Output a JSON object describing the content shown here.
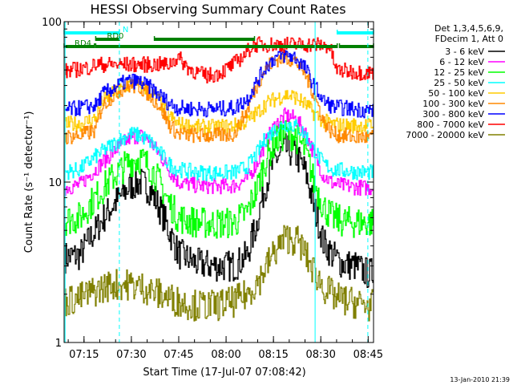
{
  "chart_data": {
    "type": "line",
    "title": "HESSI Observing Summary Count Rates",
    "xlabel": "Start Time (17-Jul-07 07:08:42)",
    "ylabel": "Count Rate (s⁻¹ detector⁻¹)",
    "x_axis_units": "minutes after 07:08:42",
    "xlim": [
      0,
      98
    ],
    "ylim": [
      1,
      100
    ],
    "y_scale": "log",
    "x_ticks": [
      {
        "label": "07:15",
        "x": 6.3
      },
      {
        "label": "07:30",
        "x": 21.3
      },
      {
        "label": "07:45",
        "x": 36.3
      },
      {
        "label": "08:00",
        "x": 51.3
      },
      {
        "label": "08:15",
        "x": 66.3
      },
      {
        "label": "08:30",
        "x": 81.3
      },
      {
        "label": "08:45",
        "x": 96.3
      }
    ],
    "y_ticks": [
      {
        "label": "1",
        "y": 1
      },
      {
        "label": "10",
        "y": 10
      },
      {
        "label": "100",
        "y": 100
      }
    ],
    "grid": false,
    "legend_header": [
      "Det 1,3,4,5,6,9,",
      "FDecim 1, Att 0"
    ],
    "legend_position": "right",
    "timestamp": "13-Jan-2010 21:39",
    "series": [
      {
        "name": "3 - 6 keV",
        "color": "#000000",
        "x": [
          0,
          5,
          10,
          15,
          18,
          21,
          24,
          27,
          30,
          33,
          36,
          42,
          48,
          54,
          58,
          61,
          64,
          67,
          70,
          73,
          76,
          79,
          82,
          85,
          88,
          92,
          96
        ],
        "y": [
          3.4,
          3.5,
          5.0,
          7.0,
          8.2,
          9.5,
          10.0,
          9.0,
          7.0,
          5.0,
          3.6,
          3.1,
          3.0,
          3.0,
          3.5,
          5.5,
          10.0,
          14.0,
          16.0,
          15.0,
          12.0,
          7.0,
          4.2,
          3.5,
          3.1,
          3.0,
          2.7
        ]
      },
      {
        "name": "6 - 12 keV",
        "color": "#ff00ff",
        "x": [
          0,
          5,
          10,
          15,
          18,
          21,
          24,
          27,
          30,
          33,
          36,
          42,
          48,
          54,
          58,
          61,
          64,
          67,
          70,
          73,
          76,
          79,
          82,
          85,
          88,
          92,
          96
        ],
        "y": [
          9.2,
          9.6,
          12.0,
          15.0,
          17.0,
          19.0,
          19.5,
          18.0,
          15.0,
          12.0,
          10.0,
          9.5,
          9.4,
          9.5,
          10.5,
          13.0,
          18.0,
          23.0,
          26.0,
          25.0,
          21.0,
          15.0,
          11.0,
          9.8,
          9.5,
          9.3,
          9.2
        ]
      },
      {
        "name": "12 - 25 keV",
        "color": "#00ff00",
        "x": [
          0,
          5,
          10,
          15,
          18,
          21,
          24,
          27,
          30,
          33,
          36,
          42,
          48,
          54,
          58,
          61,
          64,
          67,
          70,
          73,
          76,
          79,
          82,
          85,
          88,
          92,
          96
        ],
        "y": [
          5.8,
          6.0,
          8.0,
          10.5,
          12.0,
          13.5,
          14.0,
          12.5,
          10.0,
          7.5,
          6.0,
          5.6,
          5.5,
          5.6,
          6.5,
          9.0,
          14.0,
          18.0,
          20.0,
          19.5,
          16.0,
          10.0,
          7.0,
          6.0,
          5.7,
          5.6,
          5.6
        ]
      },
      {
        "name": "25 - 50 keV",
        "color": "#00ffff",
        "x": [
          0,
          5,
          10,
          15,
          18,
          21,
          24,
          27,
          30,
          33,
          36,
          42,
          48,
          54,
          58,
          61,
          64,
          67,
          70,
          73,
          76,
          79,
          82,
          85,
          88,
          92,
          96
        ],
        "y": [
          11.5,
          12.0,
          14.5,
          17.0,
          18.5,
          20.0,
          19.5,
          18.0,
          15.5,
          13.0,
          12.0,
          11.5,
          11.4,
          11.5,
          12.5,
          15.0,
          19.0,
          21.5,
          23.0,
          22.5,
          20.0,
          16.0,
          13.0,
          12.0,
          11.8,
          11.6,
          11.5
        ]
      },
      {
        "name": "50 - 100 keV",
        "color": "#ffcc00",
        "x": [
          0,
          5,
          10,
          12,
          15,
          18,
          21,
          24,
          27,
          30,
          33,
          36,
          42,
          48,
          54,
          58,
          61,
          64,
          67,
          70,
          73,
          76,
          79,
          82,
          85,
          88,
          92,
          96
        ],
        "y": [
          23.0,
          23.0,
          25.0,
          32.0,
          35.0,
          38.0,
          41.0,
          40.0,
          37.0,
          32.0,
          26.0,
          23.0,
          22.0,
          22.0,
          22.5,
          24.0,
          27.0,
          31.0,
          33.0,
          35.0,
          34.0,
          31.0,
          27.0,
          24.0,
          23.0,
          22.5,
          22.5,
          22.5
        ]
      },
      {
        "name": "100 - 300 keV",
        "color": "#ff8800",
        "x": [
          0,
          5,
          10,
          12,
          15,
          18,
          21,
          24,
          27,
          30,
          33,
          36,
          42,
          48,
          54,
          58,
          61,
          64,
          67,
          70,
          73,
          76,
          79,
          82,
          85,
          88,
          92,
          96
        ],
        "y": [
          19.0,
          19.5,
          21.0,
          30.0,
          34.0,
          38.0,
          40.0,
          39.0,
          35.0,
          30.0,
          23.0,
          20.0,
          19.5,
          19.5,
          20.0,
          28.0,
          40.0,
          52.0,
          58.0,
          60.0,
          57.0,
          48.0,
          35.0,
          24.0,
          20.0,
          19.5,
          19.0,
          19.0
        ]
      },
      {
        "name": "300 - 800 keV",
        "color": "#0000ff",
        "x": [
          0,
          5,
          10,
          12,
          15,
          18,
          21,
          24,
          27,
          30,
          33,
          36,
          42,
          48,
          54,
          58,
          61,
          64,
          67,
          70,
          73,
          76,
          79,
          82,
          85,
          88,
          92,
          96
        ],
        "y": [
          28.0,
          29.0,
          30.0,
          35.0,
          38.0,
          41.0,
          43.0,
          42.0,
          39.0,
          35.0,
          31.0,
          29.0,
          28.5,
          28.5,
          29.0,
          33.0,
          42.0,
          53.0,
          60.0,
          62.0,
          60.0,
          52.0,
          40.0,
          32.0,
          29.5,
          29.0,
          28.5,
          28.0
        ]
      },
      {
        "name": "800 - 7000 keV",
        "color": "#ff0000",
        "x": [
          0,
          3,
          8,
          10,
          30,
          33,
          36,
          39,
          42,
          45,
          48,
          51,
          54,
          57,
          60,
          80,
          84,
          86,
          90,
          96
        ],
        "y": [
          49.0,
          50.0,
          52.0,
          54.0,
          54.0,
          54.0,
          60.0,
          52.0,
          48.0,
          46.0,
          47.0,
          50.0,
          55.0,
          62.0,
          72.0,
          72.0,
          70.0,
          50.0,
          49.0,
          48.0
        ]
      },
      {
        "name": "7000 - 20000 keV",
        "color": "#808000",
        "x": [
          0,
          5,
          10,
          15,
          20,
          25,
          30,
          36,
          42,
          48,
          54,
          58,
          62,
          66,
          70,
          74,
          78,
          82,
          86,
          90,
          96
        ],
        "y": [
          1.8,
          1.9,
          2.1,
          2.3,
          2.3,
          2.2,
          2.0,
          1.8,
          1.7,
          1.7,
          1.8,
          2.0,
          2.5,
          3.5,
          4.5,
          4.3,
          3.0,
          2.2,
          1.9,
          1.8,
          1.7
        ]
      }
    ],
    "status_bars": [
      {
        "label": "N",
        "color": "#00ffff",
        "segments": [
          [
            0,
            17.5
          ],
          [
            86.5,
            98
          ]
        ]
      },
      {
        "label": "RD0",
        "color": "#008000",
        "segments": [
          [
            10,
            17.5
          ],
          [
            28.6,
            60.3
          ]
        ]
      },
      {
        "label": "RD4",
        "color": "#008000",
        "segments": [
          [
            0,
            9.6
          ],
          [
            10,
            86.5
          ],
          [
            87.2,
            98
          ]
        ]
      }
    ],
    "vlines": [
      {
        "x": 17.5,
        "color": "#00ffff",
        "style": "dashed"
      },
      {
        "x": 79.5,
        "color": "#00ffff",
        "style": "solid"
      },
      {
        "x": 96.2,
        "color": "#00ffff",
        "style": "dashed"
      },
      {
        "x": 0.3,
        "color": "#00ffff",
        "style": "solid"
      }
    ]
  }
}
